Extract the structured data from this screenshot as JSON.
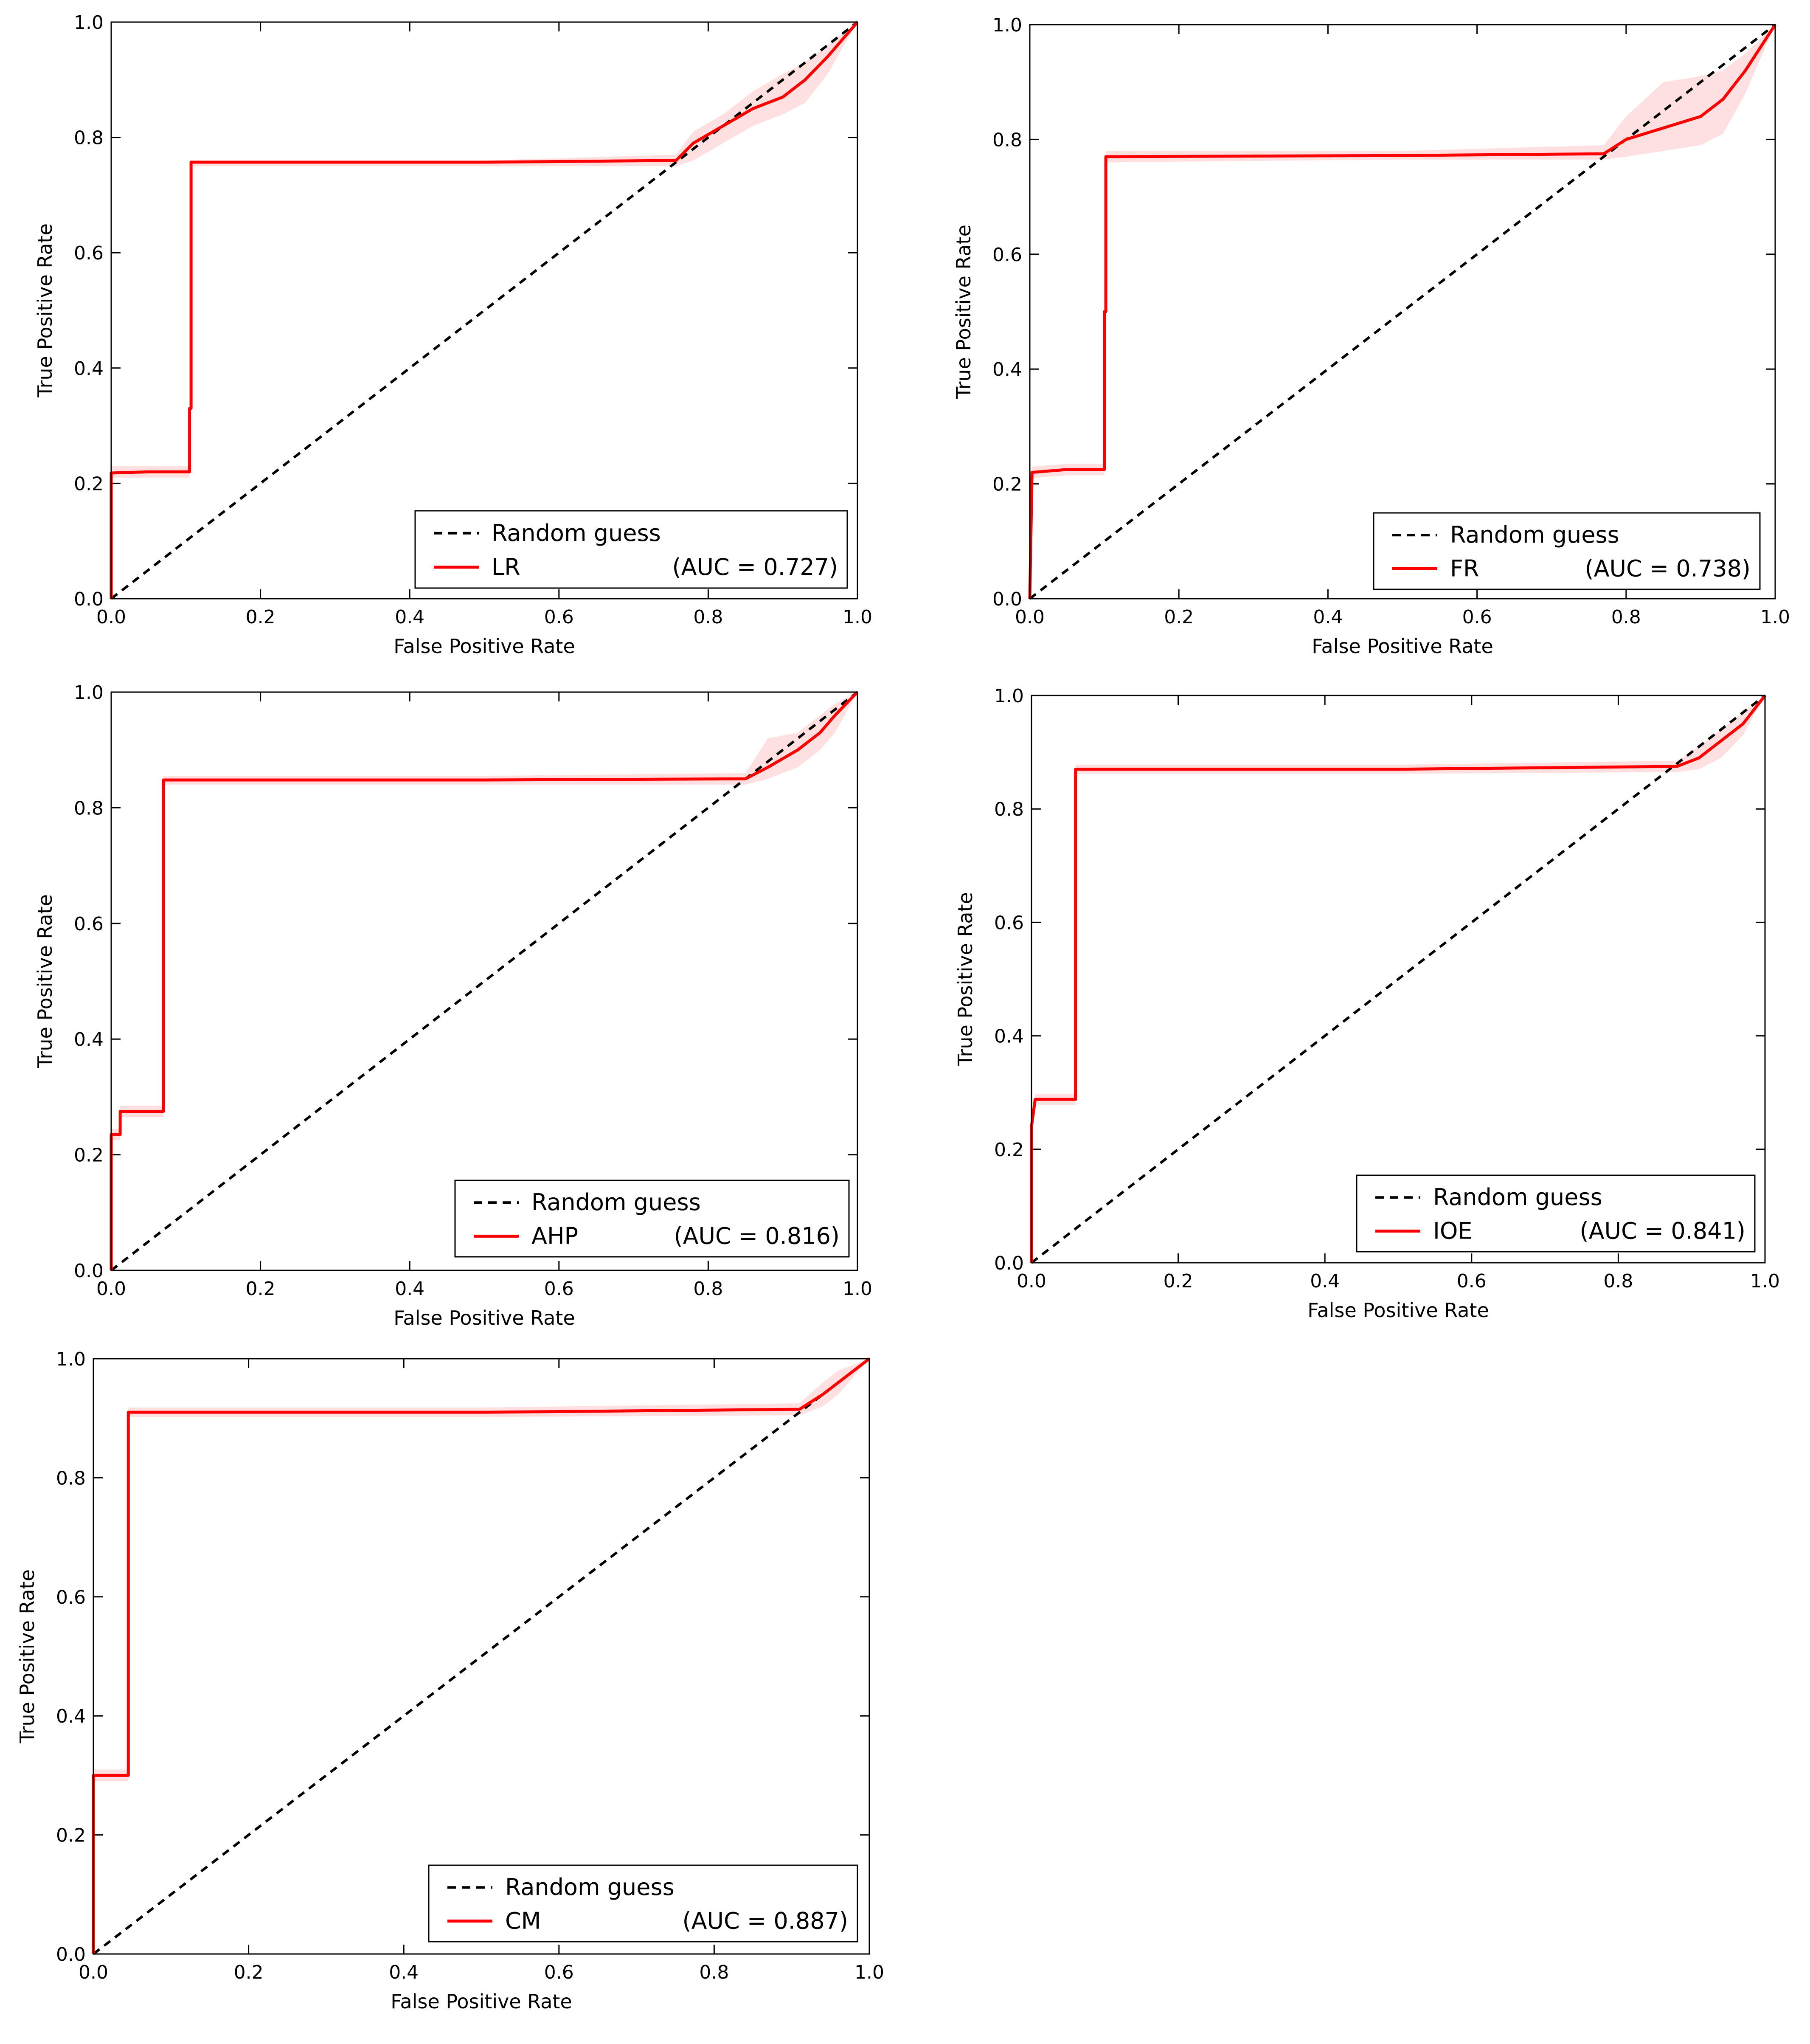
{
  "chart_data": [
    {
      "type": "line",
      "xlabel": "False Positive Rate",
      "ylabel": "True Positive Rate",
      "xlim": [
        0.0,
        1.0
      ],
      "ylim": [
        0.0,
        1.0
      ],
      "xticks": [
        "0.0",
        "0.2",
        "0.4",
        "0.6",
        "0.8",
        "1.0"
      ],
      "yticks": [
        "0.0",
        "0.2",
        "0.4",
        "0.6",
        "0.8",
        "1.0"
      ],
      "grid": false,
      "legend_position": "lower-right",
      "series": [
        {
          "name": "Random guess",
          "style": "dashed",
          "color": "#000000",
          "x": [
            0.0,
            1.0
          ],
          "y": [
            0.0,
            1.0
          ]
        },
        {
          "name": "LR",
          "style": "solid",
          "color": "#ff0000",
          "auc_label": "(AUC = 0.727)",
          "x": [
            0.0,
            0.0,
            0.05,
            0.105,
            0.105,
            0.107,
            0.107,
            0.5,
            0.757,
            0.78,
            0.82,
            0.86,
            0.9,
            0.93,
            0.96,
            1.0
          ],
          "y": [
            0.0,
            0.218,
            0.22,
            0.22,
            0.33,
            0.33,
            0.757,
            0.757,
            0.76,
            0.79,
            0.82,
            0.85,
            0.87,
            0.9,
            0.94,
            1.0
          ],
          "band_upper": [
            0.0,
            0.23,
            0.23,
            0.23,
            0.34,
            0.34,
            0.76,
            0.76,
            0.77,
            0.81,
            0.84,
            0.88,
            0.91,
            0.93,
            0.96,
            1.0
          ],
          "band_lower": [
            0.0,
            0.21,
            0.21,
            0.21,
            0.32,
            0.32,
            0.75,
            0.75,
            0.75,
            0.76,
            0.79,
            0.82,
            0.84,
            0.86,
            0.91,
            1.0
          ]
        }
      ]
    },
    {
      "type": "line",
      "xlabel": "False Positive Rate",
      "ylabel": "True Positive Rate",
      "xlim": [
        0.0,
        1.0
      ],
      "ylim": [
        0.0,
        1.0
      ],
      "xticks": [
        "0.0",
        "0.2",
        "0.4",
        "0.6",
        "0.8",
        "1.0"
      ],
      "yticks": [
        "0.0",
        "0.2",
        "0.4",
        "0.6",
        "0.8",
        "1.0"
      ],
      "grid": false,
      "legend_position": "lower-right",
      "series": [
        {
          "name": "Random guess",
          "style": "dashed",
          "color": "#000000",
          "x": [
            0.0,
            1.0
          ],
          "y": [
            0.0,
            1.0
          ]
        },
        {
          "name": "FR",
          "style": "solid",
          "color": "#ff0000",
          "auc_label": "(AUC = 0.738)",
          "x": [
            0.0,
            0.003,
            0.05,
            0.1,
            0.1,
            0.102,
            0.102,
            0.5,
            0.77,
            0.8,
            0.85,
            0.9,
            0.93,
            0.96,
            1.0
          ],
          "y": [
            0.0,
            0.22,
            0.225,
            0.225,
            0.5,
            0.5,
            0.77,
            0.772,
            0.775,
            0.8,
            0.82,
            0.84,
            0.87,
            0.92,
            1.0
          ],
          "band_upper": [
            0.0,
            0.23,
            0.235,
            0.235,
            0.55,
            0.55,
            0.78,
            0.78,
            0.79,
            0.84,
            0.9,
            0.91,
            0.92,
            0.95,
            1.0
          ],
          "band_lower": [
            0.0,
            0.21,
            0.215,
            0.215,
            0.32,
            0.32,
            0.76,
            0.765,
            0.765,
            0.77,
            0.78,
            0.79,
            0.81,
            0.88,
            1.0
          ]
        }
      ]
    },
    {
      "type": "line",
      "xlabel": "False Positive Rate",
      "ylabel": "True Positive Rate",
      "xlim": [
        0.0,
        1.0
      ],
      "ylim": [
        0.0,
        1.0
      ],
      "xticks": [
        "0.0",
        "0.2",
        "0.4",
        "0.6",
        "0.8",
        "1.0"
      ],
      "yticks": [
        "0.0",
        "0.2",
        "0.4",
        "0.6",
        "0.8",
        "1.0"
      ],
      "grid": false,
      "legend_position": "lower-right",
      "series": [
        {
          "name": "Random guess",
          "style": "dashed",
          "color": "#000000",
          "x": [
            0.0,
            1.0
          ],
          "y": [
            0.0,
            1.0
          ]
        },
        {
          "name": "AHP",
          "style": "solid",
          "color": "#ff0000",
          "auc_label": "(AUC = 0.816)",
          "x": [
            0.0,
            0.0,
            0.012,
            0.012,
            0.07,
            0.07,
            0.5,
            0.85,
            0.88,
            0.92,
            0.95,
            0.97,
            1.0
          ],
          "y": [
            0.0,
            0.235,
            0.235,
            0.275,
            0.275,
            0.848,
            0.848,
            0.85,
            0.87,
            0.9,
            0.93,
            0.96,
            1.0
          ],
          "band_upper": [
            0.0,
            0.245,
            0.245,
            0.285,
            0.285,
            0.855,
            0.855,
            0.86,
            0.92,
            0.93,
            0.96,
            0.98,
            1.0
          ],
          "band_lower": [
            0.0,
            0.225,
            0.225,
            0.265,
            0.265,
            0.84,
            0.84,
            0.84,
            0.85,
            0.87,
            0.9,
            0.93,
            1.0
          ]
        }
      ]
    },
    {
      "type": "line",
      "xlabel": "False Positive Rate",
      "ylabel": "True Positive Rate",
      "xlim": [
        0.0,
        1.0
      ],
      "ylim": [
        0.0,
        1.0
      ],
      "xticks": [
        "0.0",
        "0.2",
        "0.4",
        "0.6",
        "0.8",
        "1.0"
      ],
      "yticks": [
        "0.0",
        "0.2",
        "0.4",
        "0.6",
        "0.8",
        "1.0"
      ],
      "grid": false,
      "legend_position": "lower-right",
      "series": [
        {
          "name": "Random guess",
          "style": "dashed",
          "color": "#000000",
          "x": [
            0.0,
            1.0
          ],
          "y": [
            0.0,
            1.0
          ]
        },
        {
          "name": "IOE",
          "style": "solid",
          "color": "#ff0000",
          "auc_label": "(AUC = 0.841)",
          "x": [
            0.0,
            0.0,
            0.005,
            0.06,
            0.06,
            0.5,
            0.88,
            0.91,
            0.94,
            0.97,
            1.0
          ],
          "y": [
            0.0,
            0.24,
            0.288,
            0.288,
            0.87,
            0.87,
            0.875,
            0.89,
            0.92,
            0.95,
            1.0
          ],
          "band_upper": [
            0.0,
            0.25,
            0.298,
            0.298,
            0.878,
            0.878,
            0.885,
            0.91,
            0.94,
            0.97,
            1.0
          ],
          "band_lower": [
            0.0,
            0.23,
            0.278,
            0.278,
            0.862,
            0.862,
            0.865,
            0.87,
            0.89,
            0.93,
            1.0
          ]
        }
      ]
    },
    {
      "type": "line",
      "xlabel": "False Positive Rate",
      "ylabel": "True Positive Rate",
      "xlim": [
        0.0,
        1.0
      ],
      "ylim": [
        0.0,
        1.0
      ],
      "xticks": [
        "0.0",
        "0.2",
        "0.4",
        "0.6",
        "0.8",
        "1.0"
      ],
      "yticks": [
        "0.0",
        "0.2",
        "0.4",
        "0.6",
        "0.8",
        "1.0"
      ],
      "grid": false,
      "legend_position": "lower-right",
      "series": [
        {
          "name": "Random guess",
          "style": "dashed",
          "color": "#000000",
          "x": [
            0.0,
            1.0
          ],
          "y": [
            0.0,
            1.0
          ]
        },
        {
          "name": "CM",
          "style": "solid",
          "color": "#ff0000",
          "auc_label": "(AUC = 0.887)",
          "x": [
            0.0,
            0.0,
            0.04,
            0.045,
            0.045,
            0.5,
            0.91,
            0.94,
            0.96,
            0.98,
            1.0
          ],
          "y": [
            0.0,
            0.3,
            0.3,
            0.3,
            0.91,
            0.91,
            0.915,
            0.94,
            0.96,
            0.98,
            1.0
          ],
          "band_upper": [
            0.0,
            0.31,
            0.31,
            0.31,
            0.918,
            0.918,
            0.925,
            0.96,
            0.98,
            0.99,
            1.0
          ],
          "band_lower": [
            0.0,
            0.29,
            0.29,
            0.29,
            0.902,
            0.902,
            0.905,
            0.92,
            0.94,
            0.97,
            1.0
          ]
        }
      ]
    }
  ]
}
